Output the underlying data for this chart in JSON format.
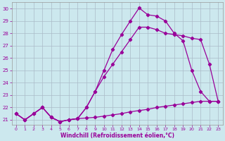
{
  "xlabel": "Windchill (Refroidissement éolien,°C)",
  "background_color": "#cce8ee",
  "grid_color": "#aabbc8",
  "line_color": "#990099",
  "xlim_min": -0.5,
  "xlim_max": 23.5,
  "ylim_min": 20.6,
  "ylim_max": 30.5,
  "xticks": [
    0,
    1,
    2,
    3,
    4,
    5,
    6,
    7,
    8,
    9,
    10,
    11,
    12,
    13,
    14,
    15,
    16,
    17,
    18,
    19,
    20,
    21,
    22,
    23
  ],
  "yticks": [
    21,
    22,
    23,
    24,
    25,
    26,
    27,
    28,
    29,
    30
  ],
  "line1_x": [
    0,
    1,
    2,
    3,
    4,
    5,
    6,
    7,
    8,
    9,
    10,
    11,
    12,
    13,
    14,
    15,
    16,
    17,
    18,
    19,
    20,
    21,
    22,
    23
  ],
  "line1_y": [
    21.5,
    21.0,
    21.5,
    22.0,
    21.2,
    20.85,
    21.0,
    21.1,
    22.0,
    23.3,
    25.0,
    26.7,
    27.9,
    29.0,
    30.05,
    29.5,
    29.4,
    29.0,
    28.0,
    27.4,
    25.0,
    23.3,
    22.5,
    22.5
  ],
  "line2_x": [
    0,
    1,
    2,
    3,
    4,
    5,
    6,
    7,
    8,
    9,
    10,
    11,
    12,
    13,
    14,
    15,
    16,
    17,
    18,
    19,
    20,
    21,
    22,
    23
  ],
  "line2_y": [
    21.5,
    21.0,
    21.5,
    22.0,
    21.2,
    20.85,
    21.0,
    21.1,
    22.0,
    23.3,
    24.5,
    25.5,
    26.5,
    27.5,
    28.5,
    28.5,
    28.3,
    28.0,
    27.9,
    27.8,
    27.6,
    27.5,
    25.5,
    22.5
  ],
  "line3_x": [
    0,
    1,
    2,
    3,
    4,
    5,
    6,
    7,
    8,
    9,
    10,
    11,
    12,
    13,
    14,
    15,
    16,
    17,
    18,
    19,
    20,
    21,
    22,
    23
  ],
  "line3_y": [
    21.5,
    21.0,
    21.5,
    22.0,
    21.2,
    20.85,
    21.0,
    21.1,
    21.15,
    21.2,
    21.3,
    21.4,
    21.5,
    21.65,
    21.75,
    21.85,
    22.0,
    22.1,
    22.2,
    22.3,
    22.4,
    22.5,
    22.5,
    22.5
  ]
}
